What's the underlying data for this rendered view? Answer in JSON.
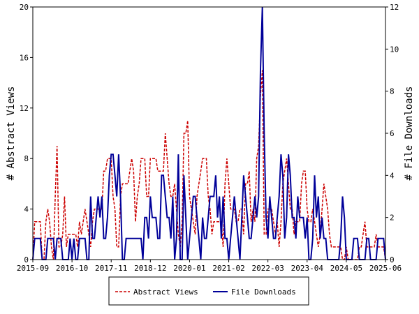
{
  "chart_data": {
    "type": "line",
    "x_ticks": [
      "2015-09",
      "2016-10",
      "2017-11",
      "2018-12",
      "2020-01",
      "2021-02",
      "2022-03",
      "2023-04",
      "2024-05",
      "2025-06"
    ],
    "ylabel_left": "# Abstract Views",
    "ylabel_right": "# File Downloads",
    "ylim_left": [
      0,
      20
    ],
    "ylim_right": [
      0,
      12
    ],
    "yticks_left": [
      0,
      4,
      8,
      12,
      16,
      20
    ],
    "yticks_right": [
      0,
      2,
      4,
      6,
      8,
      10,
      12
    ],
    "legend_position": "bottom",
    "grid": false,
    "colors": {
      "views": "#cc0000",
      "downloads": "#000099"
    },
    "series": [
      {
        "name": "Abstract Views",
        "axis": "left",
        "style": "dashed",
        "values": [
          0,
          3,
          3,
          3,
          3,
          0,
          0,
          3,
          4,
          3,
          1,
          0,
          5,
          9,
          1,
          1,
          2,
          5,
          1,
          2,
          2,
          2,
          2,
          2,
          1,
          3,
          2,
          3,
          4,
          3,
          2,
          1,
          3,
          4,
          4,
          4,
          4,
          4,
          7,
          7,
          8,
          8,
          8,
          5,
          4,
          1,
          1,
          5,
          6,
          6,
          6,
          6,
          7,
          8,
          7,
          3,
          5,
          6,
          8,
          8,
          8,
          5,
          5,
          8,
          8,
          8,
          8,
          7,
          7,
          7,
          7,
          10,
          8,
          6,
          5,
          5,
          6,
          4,
          2,
          1,
          3,
          10,
          10,
          11,
          5,
          4,
          3,
          2,
          5,
          6,
          7,
          8,
          8,
          8,
          5,
          4,
          2,
          3,
          3,
          3,
          3,
          3,
          1,
          6,
          8,
          6,
          4,
          4,
          4,
          3,
          3,
          4,
          4,
          2,
          6,
          6,
          7,
          3,
          4,
          3,
          8,
          9,
          13,
          15,
          2,
          2,
          4,
          4,
          4,
          3,
          2,
          3,
          1,
          3,
          6,
          7,
          8,
          6,
          4,
          4,
          2,
          3,
          3,
          3,
          6,
          7,
          7,
          4,
          3,
          3,
          4,
          3,
          2,
          1,
          2,
          4,
          6,
          5,
          4,
          2,
          1,
          1,
          1,
          1,
          1,
          1,
          0,
          0,
          1,
          0,
          0,
          0,
          0,
          0,
          0,
          1,
          1,
          2,
          3,
          1,
          1,
          1,
          1,
          1,
          2,
          1,
          1,
          1,
          1,
          0
        ]
      },
      {
        "name": "File Downloads",
        "axis": "right",
        "style": "solid",
        "values": [
          0,
          1,
          1,
          1,
          1,
          0,
          0,
          0,
          1,
          1,
          1,
          1,
          0,
          1,
          1,
          1,
          0,
          0,
          0,
          0,
          1,
          0,
          1,
          0,
          0,
          1,
          1,
          1,
          1,
          0,
          0,
          3,
          1,
          1,
          2,
          3,
          2,
          3,
          1,
          1,
          2,
          4,
          5,
          5,
          4,
          3,
          5,
          3,
          0,
          0,
          1,
          1,
          1,
          1,
          1,
          1,
          1,
          1,
          1,
          0,
          2,
          2,
          1,
          3,
          2,
          2,
          2,
          1,
          1,
          4,
          4,
          3,
          2,
          2,
          1,
          3,
          0,
          1,
          5,
          0,
          0,
          4,
          2,
          0,
          1,
          2,
          3,
          3,
          2,
          1,
          0,
          2,
          1,
          1,
          2,
          3,
          3,
          3,
          4,
          2,
          3,
          1,
          3,
          1,
          1,
          0,
          1,
          2,
          3,
          2,
          1,
          0,
          2,
          4,
          3,
          2,
          1,
          1,
          2,
          3,
          2,
          3,
          9,
          12,
          6,
          2,
          1,
          3,
          2,
          1,
          1,
          2,
          3,
          5,
          4,
          1,
          2,
          5,
          4,
          2,
          2,
          1,
          3,
          2,
          2,
          2,
          1,
          2,
          0,
          0,
          1,
          4,
          2,
          3,
          1,
          2,
          1,
          1,
          0,
          0,
          0,
          0,
          0,
          0,
          0,
          1,
          3,
          2,
          0,
          0,
          0,
          0,
          1,
          1,
          1,
          0,
          0,
          0,
          0,
          1,
          1,
          0,
          0,
          0,
          0,
          1,
          1,
          1,
          1,
          0
        ]
      }
    ]
  }
}
